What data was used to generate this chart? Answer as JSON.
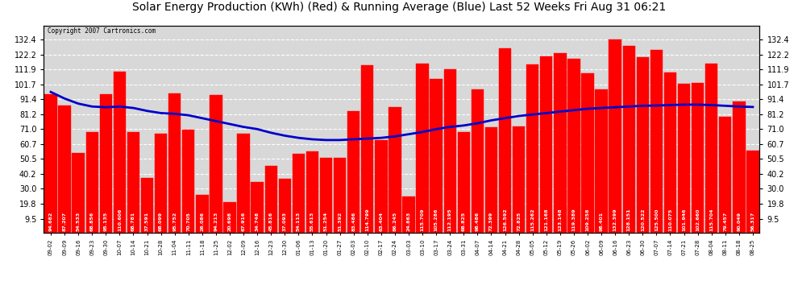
{
  "title": "Solar Energy Production (KWh) (Red) & Running Average (Blue) Last 52 Weeks Fri Aug 31 06:21",
  "copyright": "Copyright 2007 Cartronics.com",
  "bar_color": "#FF0000",
  "line_color": "#0000CC",
  "background_color": "#FFFFFF",
  "plot_bg_color": "#D8D8D8",
  "grid_color": "#FFFFFF",
  "yticks": [
    9.5,
    19.8,
    30.0,
    40.2,
    50.5,
    60.7,
    71.0,
    81.2,
    91.4,
    101.7,
    111.9,
    122.2,
    132.4
  ],
  "categories": [
    "09-02",
    "09-09",
    "09-16",
    "09-23",
    "09-30",
    "10-07",
    "10-14",
    "10-21",
    "10-28",
    "11-04",
    "11-11",
    "11-18",
    "11-25",
    "12-02",
    "12-09",
    "12-16",
    "12-23",
    "12-30",
    "01-06",
    "01-13",
    "01-20",
    "01-27",
    "02-03",
    "02-10",
    "02-17",
    "02-24",
    "03-03",
    "03-10",
    "03-17",
    "03-24",
    "03-31",
    "04-07",
    "04-14",
    "04-21",
    "04-28",
    "05-05",
    "05-12",
    "05-19",
    "05-26",
    "06-02",
    "06-09",
    "06-16",
    "06-23",
    "06-30",
    "07-07",
    "07-14",
    "07-21",
    "07-28",
    "08-04",
    "08-11",
    "08-18",
    "08-25"
  ],
  "bar_values": [
    94.682,
    87.207,
    54.533,
    68.856,
    95.135,
    110.606,
    68.781,
    37.591,
    68.099,
    95.752,
    70.705,
    26.086,
    94.213,
    20.698,
    67.916,
    34.748,
    45.816,
    37.093,
    54.113,
    55.613,
    51.254,
    51.392,
    83.486,
    114.799,
    63.404,
    86.245,
    24.863,
    115.709,
    105.286,
    112.195,
    68.825,
    98.486,
    72.399,
    126.592,
    72.825,
    115.262,
    121.168,
    123.148,
    119.389,
    109.258,
    98.401,
    132.399,
    128.151,
    120.522,
    125.5,
    110.075,
    101.946,
    102.66,
    115.704,
    79.457,
    90.049,
    56.317
  ],
  "avg_values": [
    96.5,
    92.0,
    88.5,
    86.5,
    86.0,
    86.5,
    85.5,
    83.5,
    82.0,
    81.5,
    80.5,
    78.5,
    76.5,
    74.5,
    72.5,
    71.0,
    68.5,
    66.5,
    65.0,
    64.0,
    63.5,
    63.5,
    64.0,
    64.5,
    65.0,
    66.0,
    67.5,
    69.0,
    71.0,
    72.5,
    73.5,
    75.0,
    77.0,
    78.5,
    80.0,
    81.0,
    82.0,
    83.0,
    84.0,
    85.0,
    85.5,
    86.0,
    86.5,
    87.0,
    87.2,
    87.5,
    87.8,
    87.8,
    87.5,
    87.0,
    86.5,
    86.2
  ],
  "ylim": [
    0,
    142
  ],
  "title_fontsize": 10,
  "tick_fontsize": 7,
  "bar_label_fontsize": 4.5
}
